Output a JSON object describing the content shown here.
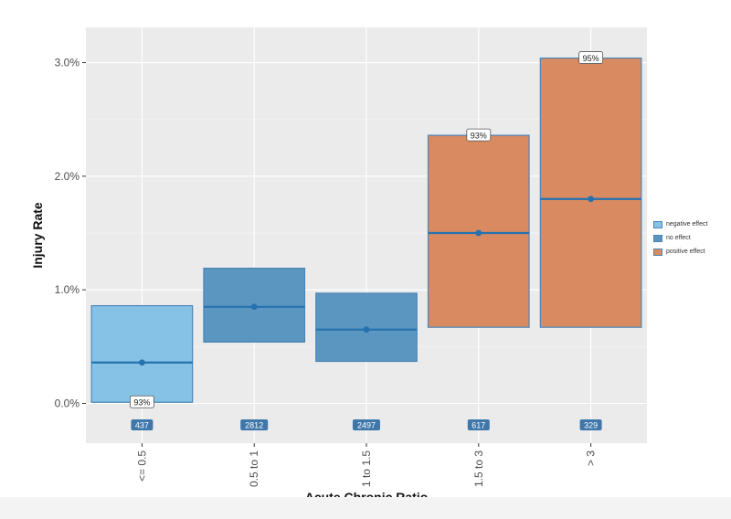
{
  "chart_data": {
    "type": "crossbar",
    "xlabel": "Acute Chronic Ratio",
    "ylabel": "Injury Rate",
    "ylim": [
      -0.0035,
      0.0331
    ],
    "y_ticks": [
      0.0,
      0.01,
      0.02,
      0.03
    ],
    "y_tick_labels": [
      "0.0%",
      "1.0%",
      "2.0%",
      "3.0%"
    ],
    "grid": true,
    "legend_position": "right",
    "categories": [
      "<= 0.5",
      "0.5 to 1",
      "1 to 1.5",
      "1.5 to 3",
      "> 3"
    ],
    "bars": [
      {
        "category": "<= 0.5",
        "group": "negative effect",
        "lower": 0.0001,
        "mid": 0.0036,
        "upper": 0.0086,
        "n": "437",
        "confidence": "93%",
        "confidence_at": "lower"
      },
      {
        "category": "0.5 to 1",
        "group": "no effect",
        "lower": 0.0054,
        "mid": 0.0085,
        "upper": 0.0119,
        "n": "2812",
        "confidence": "",
        "confidence_at": ""
      },
      {
        "category": "1 to 1.5",
        "group": "no effect",
        "lower": 0.0037,
        "mid": 0.0065,
        "upper": 0.0097,
        "n": "2497",
        "confidence": "",
        "confidence_at": ""
      },
      {
        "category": "1.5 to 3",
        "group": "positive effect",
        "lower": 0.0067,
        "mid": 0.015,
        "upper": 0.0236,
        "n": "617",
        "confidence": "93%",
        "confidence_at": "upper"
      },
      {
        "category": "> 3",
        "group": "positive effect",
        "lower": 0.0067,
        "mid": 0.018,
        "upper": 0.0304,
        "n": "329",
        "confidence": "95%",
        "confidence_at": "upper"
      }
    ],
    "legend": [
      {
        "label": "negative effect",
        "color": "#86c2e6"
      },
      {
        "label": "no effect",
        "color": "#5b96c0"
      },
      {
        "label": "positive effect",
        "color": "#d98a60"
      }
    ],
    "colors": {
      "negative effect": "#86c2e6",
      "no effect": "#5b96c0",
      "positive effect": "#d98a60",
      "bar_border": "#4a86b8",
      "median_line": "#2472b0",
      "count_badge": "#3f77aa",
      "panel_background": "#ebebeb",
      "grid": "#ffffff"
    }
  }
}
